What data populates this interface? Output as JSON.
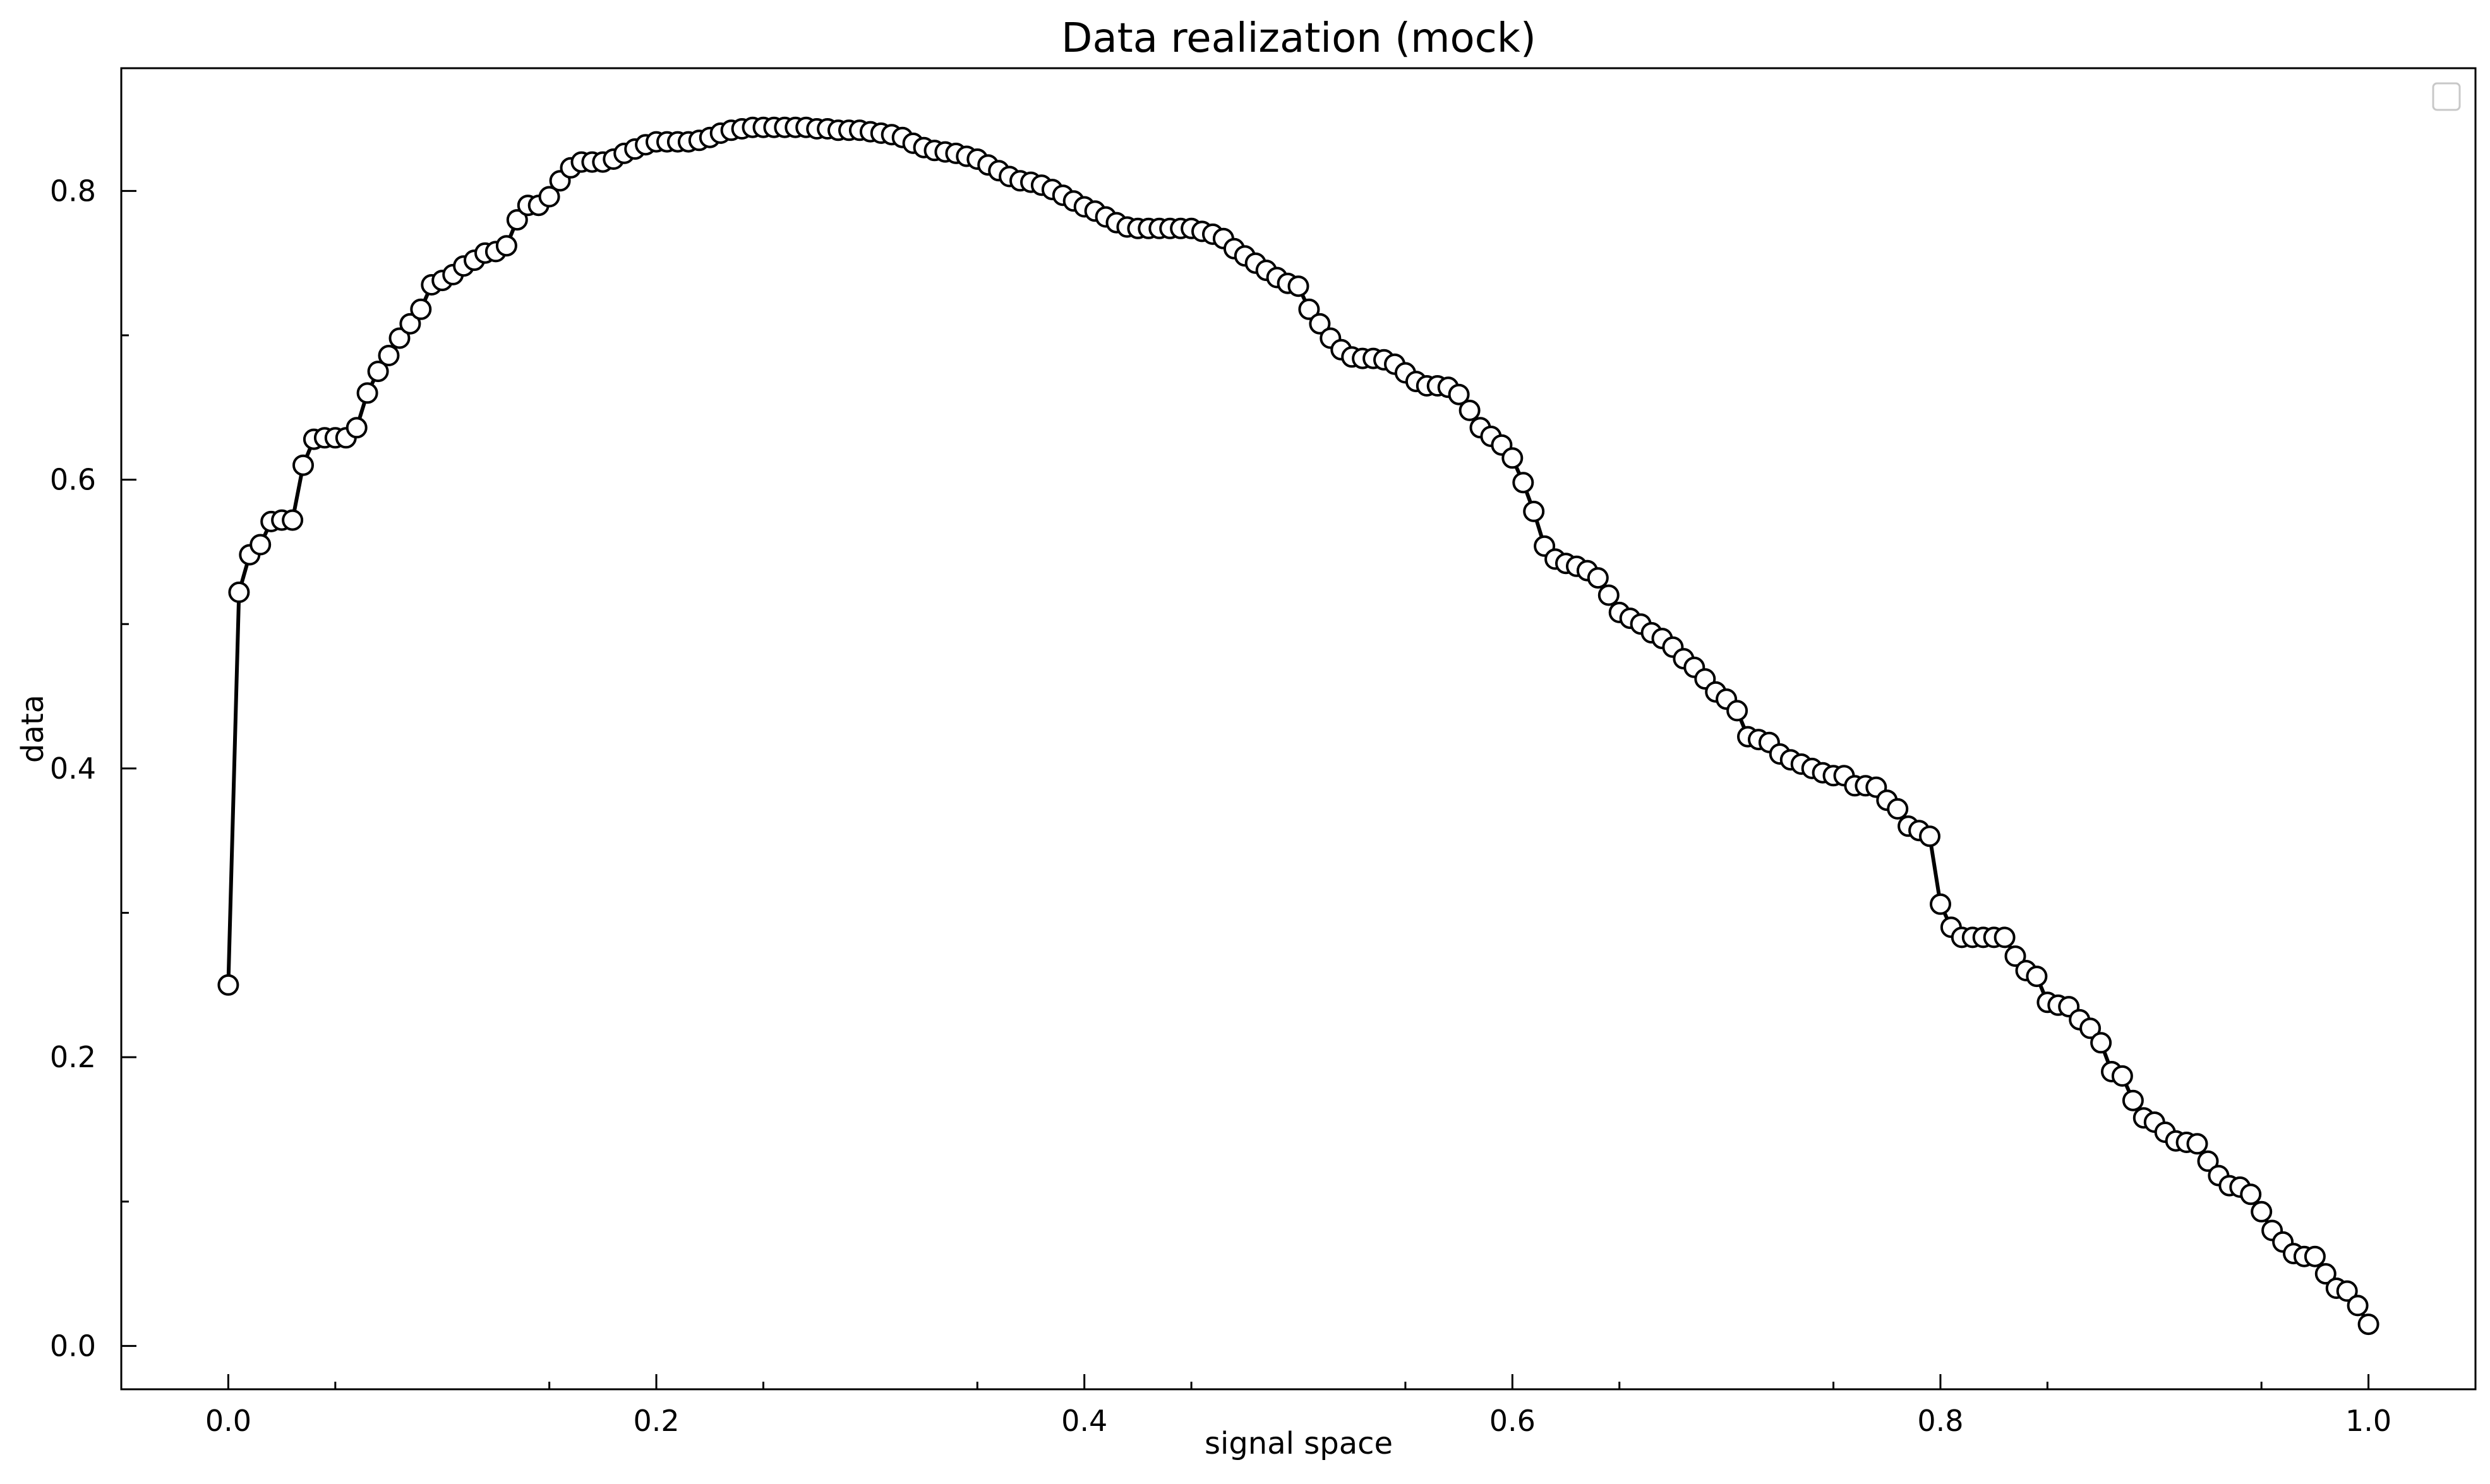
{
  "chart_data": {
    "type": "line",
    "title": "Data realization (mock)",
    "xlabel": "signal space",
    "ylabel": "data",
    "xlim": [
      -0.05,
      1.05
    ],
    "ylim": [
      -0.03,
      0.885
    ],
    "xticks": [
      {
        "value": 0.0,
        "label": "0.0"
      },
      {
        "value": 0.2,
        "label": "0.2"
      },
      {
        "value": 0.4,
        "label": "0.4"
      },
      {
        "value": 0.6,
        "label": "0.6"
      },
      {
        "value": 0.8,
        "label": "0.8"
      },
      {
        "value": 1.0,
        "label": "1.0"
      }
    ],
    "yticks": [
      {
        "value": 0.0,
        "label": "0.0"
      },
      {
        "value": 0.2,
        "label": "0.2"
      },
      {
        "value": 0.4,
        "label": "0.4"
      },
      {
        "value": 0.6,
        "label": "0.6"
      },
      {
        "value": 0.8,
        "label": "0.8"
      }
    ],
    "x_minor_step": 0.05,
    "y_minor_step": 0.1,
    "grid": false,
    "legend": "top-right",
    "legend_entries": [],
    "series": [
      {
        "marker": "open-circle",
        "color": "#000000",
        "points": [
          [
            0.0,
            0.25
          ],
          [
            0.005,
            0.522
          ],
          [
            0.01,
            0.548
          ],
          [
            0.015,
            0.555
          ],
          [
            0.02,
            0.571
          ],
          [
            0.025,
            0.572
          ],
          [
            0.03,
            0.572
          ],
          [
            0.035,
            0.61
          ],
          [
            0.04,
            0.628
          ],
          [
            0.045,
            0.629
          ],
          [
            0.05,
            0.629
          ],
          [
            0.055,
            0.629
          ],
          [
            0.06,
            0.636
          ],
          [
            0.065,
            0.66
          ],
          [
            0.07,
            0.675
          ],
          [
            0.075,
            0.686
          ],
          [
            0.08,
            0.698
          ],
          [
            0.085,
            0.708
          ],
          [
            0.09,
            0.718
          ],
          [
            0.095,
            0.735
          ],
          [
            0.1,
            0.738
          ],
          [
            0.105,
            0.742
          ],
          [
            0.11,
            0.748
          ],
          [
            0.115,
            0.752
          ],
          [
            0.12,
            0.757
          ],
          [
            0.125,
            0.758
          ],
          [
            0.13,
            0.762
          ],
          [
            0.135,
            0.78
          ],
          [
            0.14,
            0.79
          ],
          [
            0.145,
            0.79
          ],
          [
            0.15,
            0.796
          ],
          [
            0.155,
            0.807
          ],
          [
            0.16,
            0.816
          ],
          [
            0.165,
            0.82
          ],
          [
            0.17,
            0.82
          ],
          [
            0.175,
            0.82
          ],
          [
            0.18,
            0.822
          ],
          [
            0.185,
            0.826
          ],
          [
            0.19,
            0.829
          ],
          [
            0.195,
            0.832
          ],
          [
            0.2,
            0.834
          ],
          [
            0.205,
            0.834
          ],
          [
            0.21,
            0.834
          ],
          [
            0.215,
            0.834
          ],
          [
            0.22,
            0.835
          ],
          [
            0.225,
            0.837
          ],
          [
            0.23,
            0.84
          ],
          [
            0.235,
            0.842
          ],
          [
            0.24,
            0.843
          ],
          [
            0.245,
            0.844
          ],
          [
            0.25,
            0.844
          ],
          [
            0.255,
            0.844
          ],
          [
            0.26,
            0.844
          ],
          [
            0.265,
            0.844
          ],
          [
            0.27,
            0.844
          ],
          [
            0.275,
            0.843
          ],
          [
            0.28,
            0.843
          ],
          [
            0.285,
            0.842
          ],
          [
            0.29,
            0.842
          ],
          [
            0.295,
            0.842
          ],
          [
            0.3,
            0.841
          ],
          [
            0.305,
            0.84
          ],
          [
            0.31,
            0.839
          ],
          [
            0.315,
            0.837
          ],
          [
            0.32,
            0.833
          ],
          [
            0.325,
            0.83
          ],
          [
            0.33,
            0.828
          ],
          [
            0.335,
            0.827
          ],
          [
            0.34,
            0.826
          ],
          [
            0.345,
            0.824
          ],
          [
            0.35,
            0.822
          ],
          [
            0.355,
            0.818
          ],
          [
            0.36,
            0.814
          ],
          [
            0.365,
            0.81
          ],
          [
            0.37,
            0.807
          ],
          [
            0.375,
            0.806
          ],
          [
            0.38,
            0.804
          ],
          [
            0.385,
            0.801
          ],
          [
            0.39,
            0.797
          ],
          [
            0.395,
            0.793
          ],
          [
            0.4,
            0.789
          ],
          [
            0.405,
            0.786
          ],
          [
            0.41,
            0.782
          ],
          [
            0.415,
            0.778
          ],
          [
            0.42,
            0.775
          ],
          [
            0.425,
            0.774
          ],
          [
            0.43,
            0.774
          ],
          [
            0.435,
            0.774
          ],
          [
            0.44,
            0.774
          ],
          [
            0.445,
            0.774
          ],
          [
            0.45,
            0.774
          ],
          [
            0.455,
            0.772
          ],
          [
            0.46,
            0.77
          ],
          [
            0.465,
            0.767
          ],
          [
            0.47,
            0.76
          ],
          [
            0.475,
            0.755
          ],
          [
            0.48,
            0.75
          ],
          [
            0.485,
            0.745
          ],
          [
            0.49,
            0.74
          ],
          [
            0.495,
            0.736
          ],
          [
            0.5,
            0.734
          ],
          [
            0.505,
            0.718
          ],
          [
            0.51,
            0.708
          ],
          [
            0.515,
            0.698
          ],
          [
            0.52,
            0.69
          ],
          [
            0.525,
            0.685
          ],
          [
            0.53,
            0.684
          ],
          [
            0.535,
            0.684
          ],
          [
            0.54,
            0.683
          ],
          [
            0.545,
            0.68
          ],
          [
            0.55,
            0.674
          ],
          [
            0.555,
            0.668
          ],
          [
            0.56,
            0.665
          ],
          [
            0.565,
            0.665
          ],
          [
            0.57,
            0.664
          ],
          [
            0.575,
            0.659
          ],
          [
            0.58,
            0.648
          ],
          [
            0.585,
            0.636
          ],
          [
            0.59,
            0.63
          ],
          [
            0.595,
            0.624
          ],
          [
            0.6,
            0.615
          ],
          [
            0.605,
            0.598
          ],
          [
            0.61,
            0.578
          ],
          [
            0.615,
            0.554
          ],
          [
            0.62,
            0.545
          ],
          [
            0.625,
            0.542
          ],
          [
            0.63,
            0.54
          ],
          [
            0.635,
            0.537
          ],
          [
            0.64,
            0.532
          ],
          [
            0.645,
            0.52
          ],
          [
            0.65,
            0.508
          ],
          [
            0.655,
            0.504
          ],
          [
            0.66,
            0.5
          ],
          [
            0.665,
            0.494
          ],
          [
            0.67,
            0.49
          ],
          [
            0.675,
            0.484
          ],
          [
            0.68,
            0.476
          ],
          [
            0.685,
            0.47
          ],
          [
            0.69,
            0.462
          ],
          [
            0.695,
            0.453
          ],
          [
            0.7,
            0.448
          ],
          [
            0.705,
            0.44
          ],
          [
            0.71,
            0.422
          ],
          [
            0.715,
            0.42
          ],
          [
            0.72,
            0.418
          ],
          [
            0.725,
            0.41
          ],
          [
            0.73,
            0.406
          ],
          [
            0.735,
            0.403
          ],
          [
            0.74,
            0.4
          ],
          [
            0.745,
            0.397
          ],
          [
            0.75,
            0.395
          ],
          [
            0.755,
            0.395
          ],
          [
            0.76,
            0.388
          ],
          [
            0.765,
            0.388
          ],
          [
            0.77,
            0.387
          ],
          [
            0.775,
            0.378
          ],
          [
            0.78,
            0.372
          ],
          [
            0.785,
            0.36
          ],
          [
            0.79,
            0.357
          ],
          [
            0.795,
            0.353
          ],
          [
            0.8,
            0.306
          ],
          [
            0.805,
            0.29
          ],
          [
            0.81,
            0.283
          ],
          [
            0.815,
            0.283
          ],
          [
            0.82,
            0.283
          ],
          [
            0.825,
            0.283
          ],
          [
            0.83,
            0.283
          ],
          [
            0.835,
            0.27
          ],
          [
            0.84,
            0.26
          ],
          [
            0.845,
            0.256
          ],
          [
            0.85,
            0.238
          ],
          [
            0.855,
            0.236
          ],
          [
            0.86,
            0.235
          ],
          [
            0.865,
            0.226
          ],
          [
            0.87,
            0.22
          ],
          [
            0.875,
            0.21
          ],
          [
            0.88,
            0.19
          ],
          [
            0.885,
            0.187
          ],
          [
            0.89,
            0.17
          ],
          [
            0.895,
            0.158
          ],
          [
            0.9,
            0.155
          ],
          [
            0.905,
            0.148
          ],
          [
            0.91,
            0.142
          ],
          [
            0.915,
            0.141
          ],
          [
            0.92,
            0.14
          ],
          [
            0.925,
            0.128
          ],
          [
            0.93,
            0.118
          ],
          [
            0.935,
            0.111
          ],
          [
            0.94,
            0.11
          ],
          [
            0.945,
            0.105
          ],
          [
            0.95,
            0.093
          ],
          [
            0.955,
            0.08
          ],
          [
            0.96,
            0.072
          ],
          [
            0.965,
            0.064
          ],
          [
            0.97,
            0.062
          ],
          [
            0.975,
            0.062
          ],
          [
            0.98,
            0.05
          ],
          [
            0.985,
            0.04
          ],
          [
            0.99,
            0.038
          ],
          [
            0.995,
            0.028
          ],
          [
            1.0,
            0.015
          ]
        ]
      }
    ]
  }
}
